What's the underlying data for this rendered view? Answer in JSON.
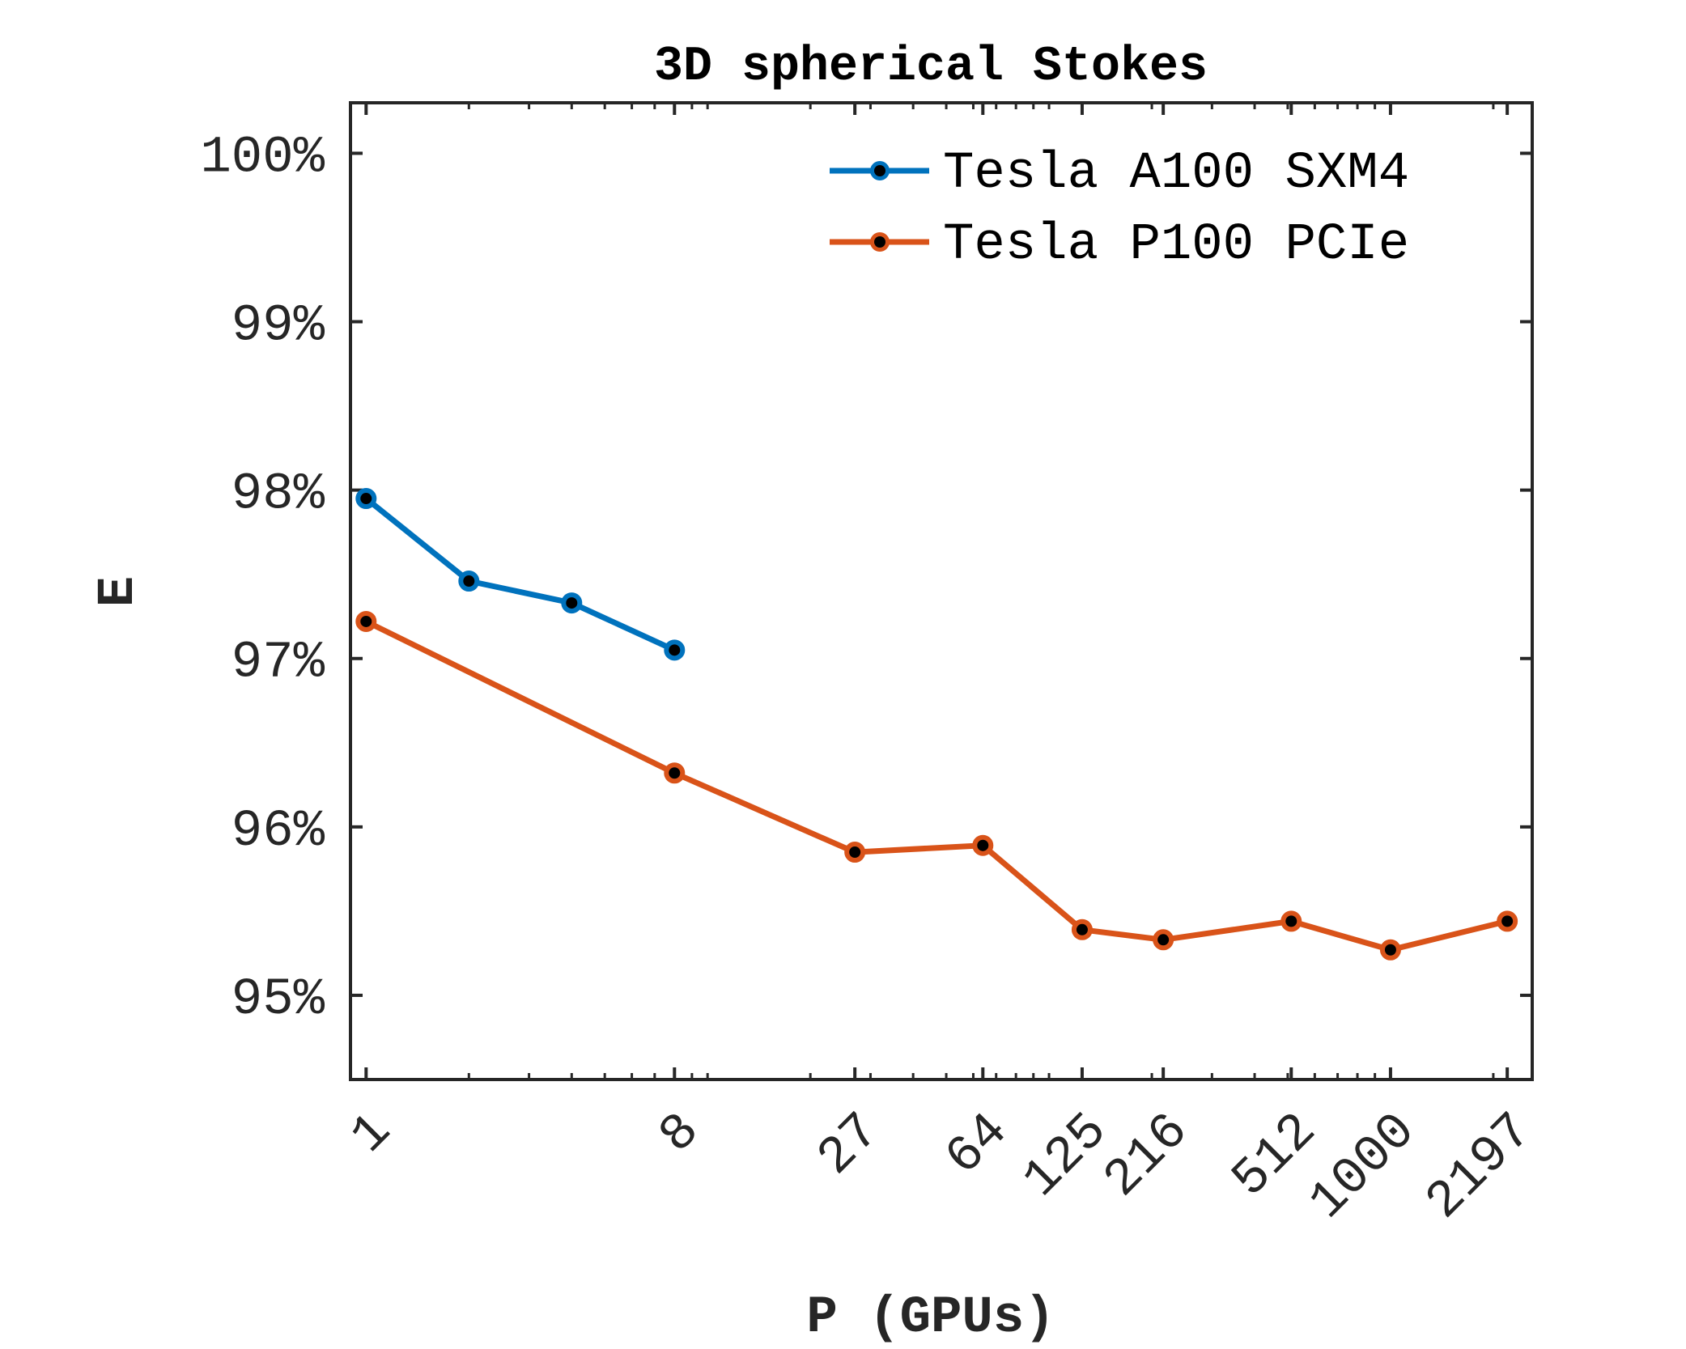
{
  "chart_data": {
    "type": "line",
    "title": "3D spherical Stokes",
    "xlabel": "P (GPUs)",
    "ylabel": "E",
    "xscale": "log",
    "xlim": [
      0.9,
      2600
    ],
    "ylim": [
      94.5,
      100.3
    ],
    "x_ticks": [
      1,
      8,
      27,
      64,
      125,
      216,
      512,
      1000,
      2197
    ],
    "x_tick_labels": [
      "1",
      "8",
      "27",
      "64",
      "125",
      "216",
      "512",
      "1000",
      "2197"
    ],
    "y_ticks": [
      95,
      96,
      97,
      98,
      99,
      100
    ],
    "y_tick_labels": [
      "95%",
      "96%",
      "97%",
      "98%",
      "99%",
      "100%"
    ],
    "legend_position": "top-right",
    "grid": false,
    "series": [
      {
        "name": "Tesla A100 SXM4",
        "color": "#0072BD",
        "x": [
          1,
          2,
          4,
          8
        ],
        "y": [
          97.95,
          97.46,
          97.33,
          97.05
        ]
      },
      {
        "name": "Tesla P100 PCIe",
        "color": "#D95319",
        "x": [
          1,
          8,
          27,
          64,
          125,
          216,
          512,
          1000,
          2197
        ],
        "y": [
          97.22,
          96.32,
          95.85,
          95.89,
          95.39,
          95.33,
          95.44,
          95.27,
          95.44
        ]
      }
    ]
  }
}
